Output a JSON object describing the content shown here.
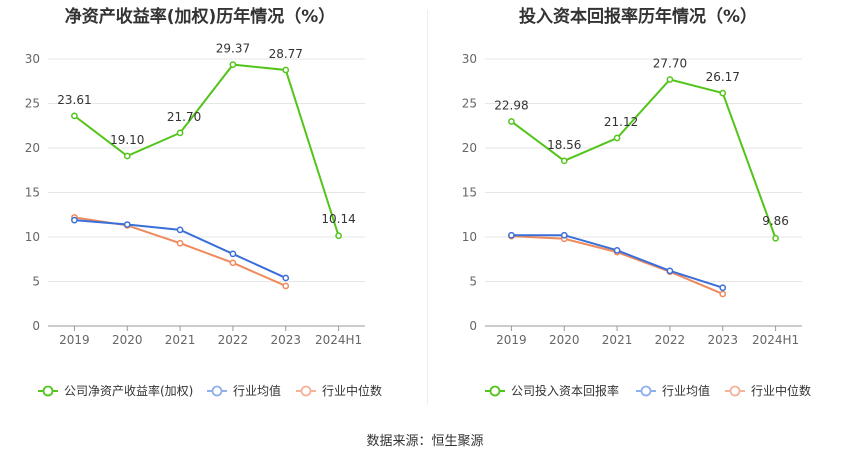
{
  "source_label": "数据来源：恒生聚源",
  "colors": {
    "company": "#52c41a",
    "avg": "#3a6fd9",
    "median": "#f08a5d",
    "grid": "#e6e6e6",
    "axis": "#666666",
    "text": "#333333"
  },
  "chart_data": [
    {
      "type": "line",
      "title": "净资产收益率(加权)历年情况（%）",
      "categories": [
        "2019",
        "2020",
        "2021",
        "2022",
        "2023",
        "2024H1"
      ],
      "ylim": [
        0,
        30
      ],
      "yticks": [
        0,
        5,
        10,
        15,
        20,
        25,
        30
      ],
      "series": [
        {
          "name": "公司净资产收益率(加权)",
          "key": "company",
          "labels": true,
          "values": [
            23.61,
            19.1,
            21.7,
            29.37,
            28.77,
            10.14
          ]
        },
        {
          "name": "行业均值",
          "key": "avg",
          "labels": false,
          "values": [
            11.9,
            11.4,
            10.8,
            8.1,
            5.4,
            null
          ]
        },
        {
          "name": "行业中位数",
          "key": "median",
          "labels": false,
          "values": [
            12.2,
            11.3,
            9.3,
            7.1,
            4.5,
            null
          ]
        }
      ]
    },
    {
      "type": "line",
      "title": "投入资本回报率历年情况（%）",
      "categories": [
        "2019",
        "2020",
        "2021",
        "2022",
        "2023",
        "2024H1"
      ],
      "ylim": [
        0,
        30
      ],
      "yticks": [
        0,
        5,
        10,
        15,
        20,
        25,
        30
      ],
      "series": [
        {
          "name": "公司投入资本回报率",
          "key": "company",
          "labels": true,
          "values": [
            22.98,
            18.56,
            21.12,
            27.7,
            26.17,
            9.86
          ]
        },
        {
          "name": "行业均值",
          "key": "avg",
          "labels": false,
          "values": [
            10.2,
            10.2,
            8.5,
            6.2,
            4.3,
            null
          ]
        },
        {
          "name": "行业中位数",
          "key": "median",
          "labels": false,
          "values": [
            10.1,
            9.8,
            8.3,
            6.1,
            3.6,
            null
          ]
        }
      ]
    }
  ]
}
